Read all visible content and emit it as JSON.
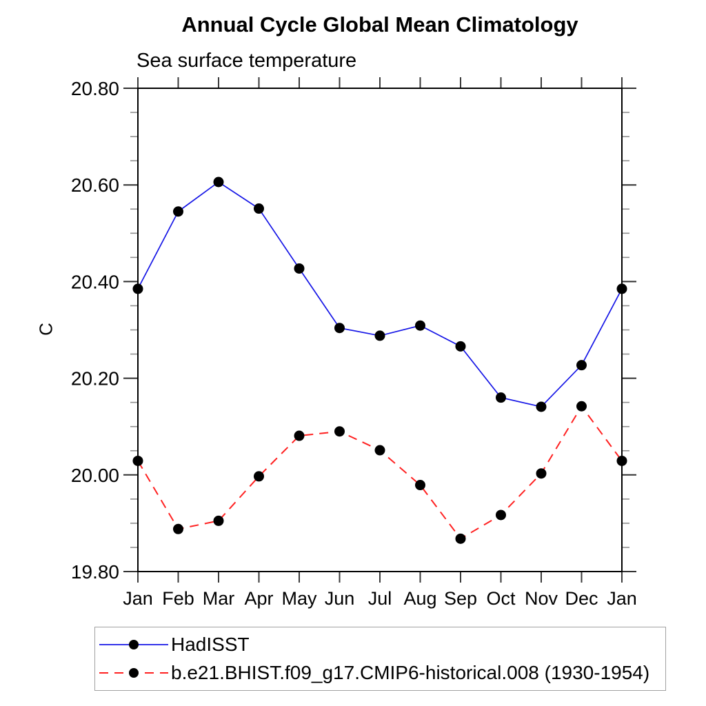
{
  "title": "Annual Cycle Global Mean Climatology",
  "subtitle": "Sea surface temperature",
  "y_axis_title": "C",
  "colors": {
    "frame": "#000000",
    "major_tick": "#2f2f2f",
    "minor_tick": "#8f8f8f",
    "month_tick": "#3a3a3a",
    "marker": "#000000",
    "series1": "#1414e6",
    "series2": "#ff2020",
    "legend_border": "#a0a0a0"
  },
  "chart_data": {
    "type": "line",
    "categories": [
      "Jan",
      "Feb",
      "Mar",
      "Apr",
      "May",
      "Jun",
      "Jul",
      "Aug",
      "Sep",
      "Oct",
      "Nov",
      "Dec",
      "Jan"
    ],
    "series": [
      {
        "name": "HadISST",
        "color": "#1414e6",
        "line_style": "solid",
        "marker": "circle",
        "marker_color": "#000000",
        "values": [
          20.385,
          20.545,
          20.606,
          20.551,
          20.427,
          20.304,
          20.288,
          20.309,
          20.266,
          20.16,
          20.141,
          20.227,
          20.385
        ]
      },
      {
        "name": "b.e21.BHIST.f09_g17.CMIP6-historical.008 (1930-1954)",
        "color": "#ff2020",
        "line_style": "dashed",
        "marker": "circle",
        "marker_color": "#000000",
        "values": [
          20.029,
          19.888,
          19.905,
          19.997,
          20.081,
          20.09,
          20.051,
          19.979,
          19.868,
          19.917,
          20.003,
          20.142,
          20.029
        ]
      }
    ],
    "title": "Annual Cycle Global Mean Climatology",
    "subtitle": "Sea surface temperature",
    "xlabel": "",
    "ylabel": "C",
    "ylim": [
      19.8,
      20.8
    ],
    "ytick_interval": 0.2,
    "yminor_interval": 0.05,
    "ytick_labels": [
      "19.80",
      "20.00",
      "20.20",
      "20.40",
      "20.60",
      "20.80"
    ],
    "grid": false,
    "legend_position": "below-left"
  }
}
